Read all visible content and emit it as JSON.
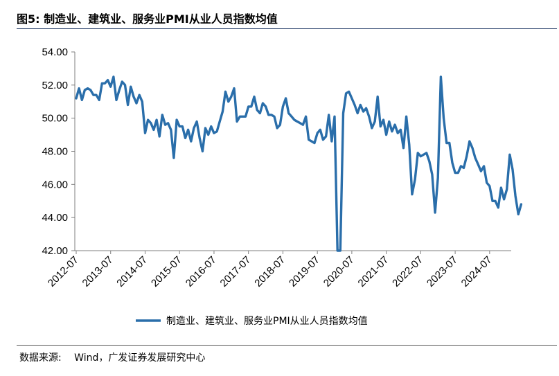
{
  "header": {
    "figure_label": "图5:",
    "title": "制造业、建筑业、服务业PMI从业人员指数均值"
  },
  "source": {
    "label": "数据来源:",
    "text": "Wind，广发证券发展研究中心"
  },
  "chart_data": {
    "type": "line",
    "title": "制造业、建筑业、服务业PMI从业人员指数均值",
    "xlabel": "",
    "ylabel": "",
    "ylim": [
      42,
      54
    ],
    "ytick_labels": [
      "42.00",
      "44.00",
      "46.00",
      "48.00",
      "50.00",
      "52.00",
      "54.00"
    ],
    "xtick_labels": [
      "2012-07",
      "2013-07",
      "2014-07",
      "2015-07",
      "2016-07",
      "2017-07",
      "2018-07",
      "2019-07",
      "2020-07",
      "2021-07",
      "2022-07",
      "2023-07",
      "2024-07"
    ],
    "x_start": "2012-07",
    "x_end": "2025-03",
    "legend_position": "bottom",
    "grid": false,
    "series": [
      {
        "name": "制造业、建筑业、服务业PMI从业人员指数均值",
        "color": "#2a6eaa",
        "values": [
          51.2,
          51.8,
          51.1,
          51.7,
          51.8,
          51.7,
          51.4,
          51.4,
          51.1,
          52.1,
          52.1,
          52.3,
          51.9,
          52.5,
          51.1,
          51.7,
          52.2,
          52.0,
          50.8,
          51.9,
          51.3,
          50.9,
          51.4,
          51.0,
          49.1,
          49.9,
          49.7,
          49.3,
          49.9,
          48.9,
          50.2,
          49.6,
          49.7,
          49.3,
          47.6,
          49.9,
          49.5,
          49.5,
          48.8,
          49.3,
          48.6,
          49.4,
          49.8,
          48.8,
          48.0,
          49.4,
          49.0,
          49.5,
          49.1,
          49.2,
          49.8,
          50.4,
          51.6,
          51.0,
          51.3,
          51.8,
          49.8,
          50.1,
          50.1,
          50.1,
          50.7,
          50.7,
          51.3,
          50.5,
          50.3,
          50.9,
          50.7,
          50.2,
          50.2,
          50.1,
          49.4,
          49.6,
          50.7,
          51.2,
          50.3,
          50.1,
          49.9,
          49.8,
          49.7,
          49.6,
          50.1,
          48.7,
          48.6,
          48.5,
          49.1,
          49.3,
          48.7,
          48.9,
          50.2,
          48.6,
          50.1,
          42.0,
          42.0,
          50.3,
          51.5,
          51.6,
          51.2,
          50.8,
          50.3,
          50.8,
          50.4,
          50.6,
          50.1,
          49.4,
          49.8,
          51.3,
          49.5,
          49.9,
          49.0,
          49.8,
          49.2,
          49.6,
          49.1,
          49.3,
          48.2,
          50.1,
          48.4,
          45.4,
          46.3,
          47.9,
          47.7,
          47.8,
          47.9,
          47.4,
          46.6,
          44.3,
          46.4,
          52.5,
          50.0,
          48.5,
          48.5,
          47.3,
          46.7,
          46.7,
          47.1,
          47.0,
          47.7,
          48.6,
          48.2,
          47.6,
          47.2,
          46.8,
          47.1,
          46.1,
          45.9,
          45.0,
          45.0,
          44.6,
          45.8,
          45.1,
          45.7,
          47.8,
          46.9,
          45.3,
          44.2,
          44.8
        ]
      }
    ]
  }
}
